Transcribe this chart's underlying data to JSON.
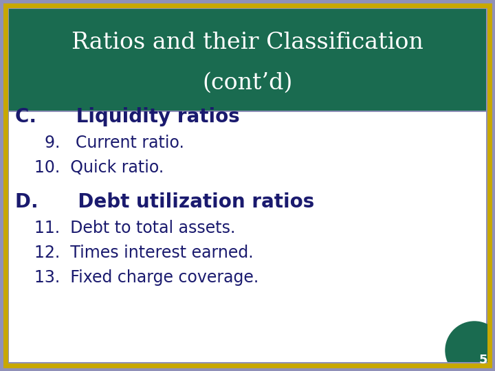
{
  "title_line1": "Ratios and their Classification",
  "title_line2": "(cont’d)",
  "title_bg_color": "#1a6b50",
  "title_text_color": "#ffffff",
  "slide_bg_color": "#9090b8",
  "content_bg_color": "#ffffff",
  "border_color_gold": "#c8a800",
  "section_c_header": "C.      Liquidity ratios",
  "section_d_header": "D.      Debt utilization ratios",
  "section_c_items": [
    "  9.   Current ratio.",
    "10.  Quick ratio."
  ],
  "section_d_items": [
    "11.  Debt to total assets.",
    "12.  Times interest earned.",
    "13.  Fixed charge coverage."
  ],
  "header_color": "#1a1a6e",
  "item_color": "#1a1a6e",
  "header_fontsize": 20,
  "item_fontsize": 17,
  "title_fontsize": 24,
  "page_number": "5",
  "page_num_color": "#ffffff",
  "gold_color": "#c8a800",
  "teal_color": "#1a6b50"
}
